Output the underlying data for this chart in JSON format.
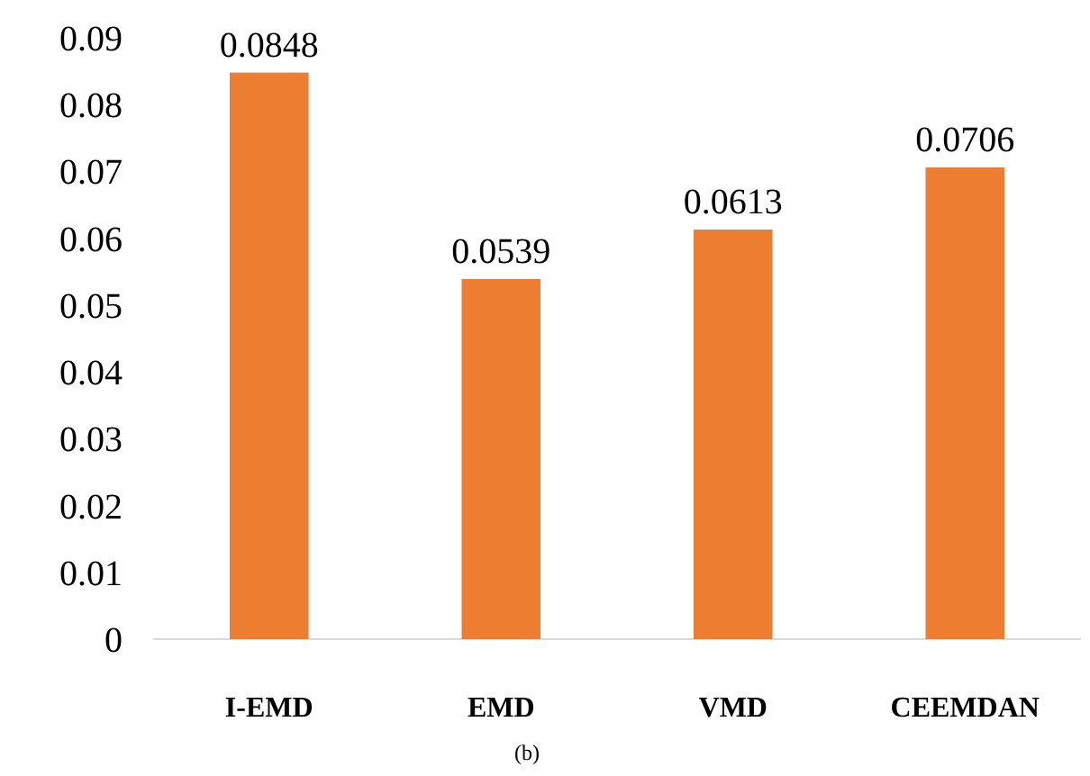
{
  "chart_data": {
    "type": "bar",
    "categories": [
      "I-EMD",
      "EMD",
      "VMD",
      "CEEMDAN"
    ],
    "values": [
      0.0848,
      0.0539,
      0.0613,
      0.0706
    ],
    "color": "#ed7d31",
    "data_labels": true,
    "ylim": [
      0,
      0.09
    ],
    "yticks": [
      0,
      0.01,
      0.02,
      0.03,
      0.04,
      0.05,
      0.06,
      0.07,
      0.08,
      0.09
    ],
    "grid": false,
    "annotations": [
      "(b)"
    ]
  }
}
